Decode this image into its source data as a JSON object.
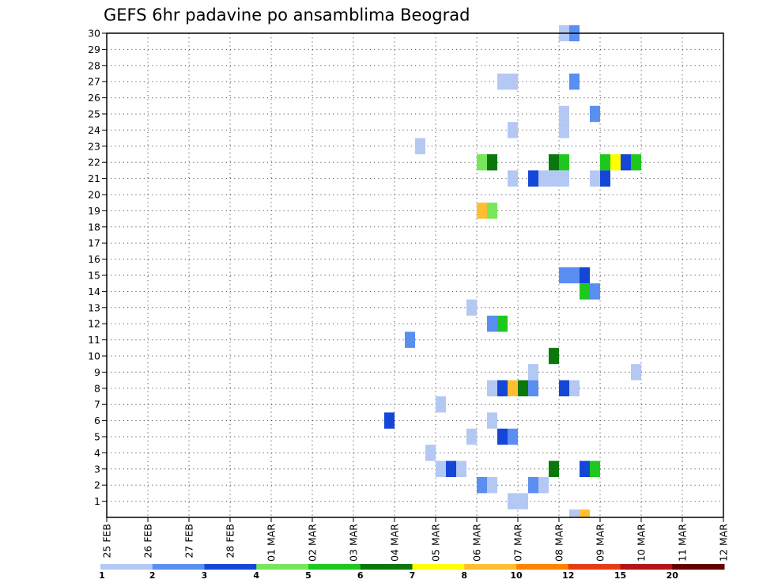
{
  "chart_data": {
    "type": "heatmap",
    "title": "GEFS 6hr padavine po ansamblima Beograd",
    "xlabel": "",
    "ylabel": "",
    "x_ticks": [
      "25 FEB",
      "26 FEB",
      "27 FEB",
      "28 FEB",
      "01 MAR",
      "02 MAR",
      "03 MAR",
      "04 MAR",
      "05 MAR",
      "06 MAR",
      "07 MAR",
      "08 MAR",
      "09 MAR",
      "10 MAR",
      "11 MAR",
      "12 MAR"
    ],
    "y_ticks": [
      "1",
      "2",
      "3",
      "4",
      "5",
      "6",
      "7",
      "8",
      "9",
      "10",
      "11",
      "12",
      "13",
      "14",
      "15",
      "16",
      "17",
      "18",
      "19",
      "20",
      "21",
      "22",
      "23",
      "24",
      "25",
      "26",
      "27",
      "28",
      "29",
      "30"
    ],
    "ylim": [
      0,
      30
    ],
    "grid": true,
    "colorbar": {
      "levels": [
        "1",
        "2",
        "3",
        "4",
        "5",
        "6",
        "7",
        "8",
        "10",
        "12",
        "15",
        "20"
      ],
      "colors": [
        "#b4c8f4",
        "#5a8ef0",
        "#1446d8",
        "#78e65a",
        "#1ec81e",
        "#0a780a",
        "#ffff00",
        "#ffbe32",
        "#ff8200",
        "#e63c14",
        "#b41414",
        "#640000"
      ]
    },
    "cells": [
      {
        "time": "11.0",
        "member": 30,
        "value": 1.5
      },
      {
        "time": "11.25",
        "member": 30,
        "value": 2.5
      },
      {
        "time": "9.5",
        "member": 27,
        "value": 1.5
      },
      {
        "time": "9.75",
        "member": 27,
        "value": 1.5
      },
      {
        "time": "11.25",
        "member": 27,
        "value": 2.5
      },
      {
        "time": "11.0",
        "member": 25,
        "value": 1.5
      },
      {
        "time": "11.75",
        "member": 25,
        "value": 2.5
      },
      {
        "time": "9.75",
        "member": 24,
        "value": 1.5
      },
      {
        "time": "11.0",
        "member": 24,
        "value": 1.5
      },
      {
        "time": "7.5",
        "member": 23,
        "value": 1.5
      },
      {
        "time": "9.0",
        "member": 22,
        "value": 4.5
      },
      {
        "time": "9.25",
        "member": 22,
        "value": 6.5
      },
      {
        "time": "10.75",
        "member": 22,
        "value": 6.5
      },
      {
        "time": "11.0",
        "member": 22,
        "value": 5.5
      },
      {
        "time": "12.0",
        "member": 22,
        "value": 5.5
      },
      {
        "time": "12.25",
        "member": 22,
        "value": 7.5
      },
      {
        "time": "12.5",
        "member": 22,
        "value": 3.5
      },
      {
        "time": "12.75",
        "member": 22,
        "value": 5.5
      },
      {
        "time": "9.75",
        "member": 21,
        "value": 1.5
      },
      {
        "time": "10.25",
        "member": 21,
        "value": 3.5
      },
      {
        "time": "10.5",
        "member": 21,
        "value": 1.5
      },
      {
        "time": "10.75",
        "member": 21,
        "value": 1.5
      },
      {
        "time": "11.0",
        "member": 21,
        "value": 1.5
      },
      {
        "time": "11.75",
        "member": 21,
        "value": 1.5
      },
      {
        "time": "12.0",
        "member": 21,
        "value": 3.5
      },
      {
        "time": "9.0",
        "member": 19,
        "value": 9.0
      },
      {
        "time": "9.25",
        "member": 19,
        "value": 4.5
      },
      {
        "time": "11.0",
        "member": 15,
        "value": 2.5
      },
      {
        "time": "11.25",
        "member": 15,
        "value": 2.5
      },
      {
        "time": "11.5",
        "member": 15,
        "value": 3.5
      },
      {
        "time": "11.5",
        "member": 14,
        "value": 5.5
      },
      {
        "time": "11.75",
        "member": 14,
        "value": 2.5
      },
      {
        "time": "8.75",
        "member": 13,
        "value": 1.5
      },
      {
        "time": "9.25",
        "member": 12,
        "value": 2.5
      },
      {
        "time": "9.5",
        "member": 12,
        "value": 5.5
      },
      {
        "time": "7.25",
        "member": 11,
        "value": 2.5
      },
      {
        "time": "10.75",
        "member": 10,
        "value": 6.5
      },
      {
        "time": "10.25",
        "member": 9,
        "value": 1.5
      },
      {
        "time": "12.75",
        "member": 9,
        "value": 1.5
      },
      {
        "time": "9.25",
        "member": 8,
        "value": 1.5
      },
      {
        "time": "9.5",
        "member": 8,
        "value": 3.5
      },
      {
        "time": "9.75",
        "member": 8,
        "value": 9.0
      },
      {
        "time": "10.0",
        "member": 8,
        "value": 6.5
      },
      {
        "time": "10.25",
        "member": 8,
        "value": 2.5
      },
      {
        "time": "11.0",
        "member": 8,
        "value": 3.5
      },
      {
        "time": "11.25",
        "member": 8,
        "value": 1.5
      },
      {
        "time": "8.0",
        "member": 7,
        "value": 1.5
      },
      {
        "time": "6.75",
        "member": 6,
        "value": 3.5
      },
      {
        "time": "9.25",
        "member": 6,
        "value": 1.5
      },
      {
        "time": "8.75",
        "member": 5,
        "value": 1.5
      },
      {
        "time": "9.5",
        "member": 5,
        "value": 3.5
      },
      {
        "time": "9.75",
        "member": 5,
        "value": 2.5
      },
      {
        "time": "7.75",
        "member": 4,
        "value": 1.5
      },
      {
        "time": "8.0",
        "member": 3,
        "value": 1.5
      },
      {
        "time": "8.25",
        "member": 3,
        "value": 3.5
      },
      {
        "time": "8.5",
        "member": 3,
        "value": 1.5
      },
      {
        "time": "10.75",
        "member": 3,
        "value": 6.5
      },
      {
        "time": "11.5",
        "member": 3,
        "value": 3.5
      },
      {
        "time": "11.75",
        "member": 3,
        "value": 5.5
      },
      {
        "time": "9.0",
        "member": 2,
        "value": 2.5
      },
      {
        "time": "9.25",
        "member": 2,
        "value": 1.5
      },
      {
        "time": "10.25",
        "member": 2,
        "value": 2.5
      },
      {
        "time": "10.5",
        "member": 2,
        "value": 1.5
      },
      {
        "time": "9.75",
        "member": 1,
        "value": 1.5
      },
      {
        "time": "10.0",
        "member": 1,
        "value": 1.5
      },
      {
        "time": "11.25",
        "member": 0,
        "value": 1.5
      },
      {
        "time": "11.5",
        "member": 0,
        "value": 9.0
      }
    ]
  }
}
